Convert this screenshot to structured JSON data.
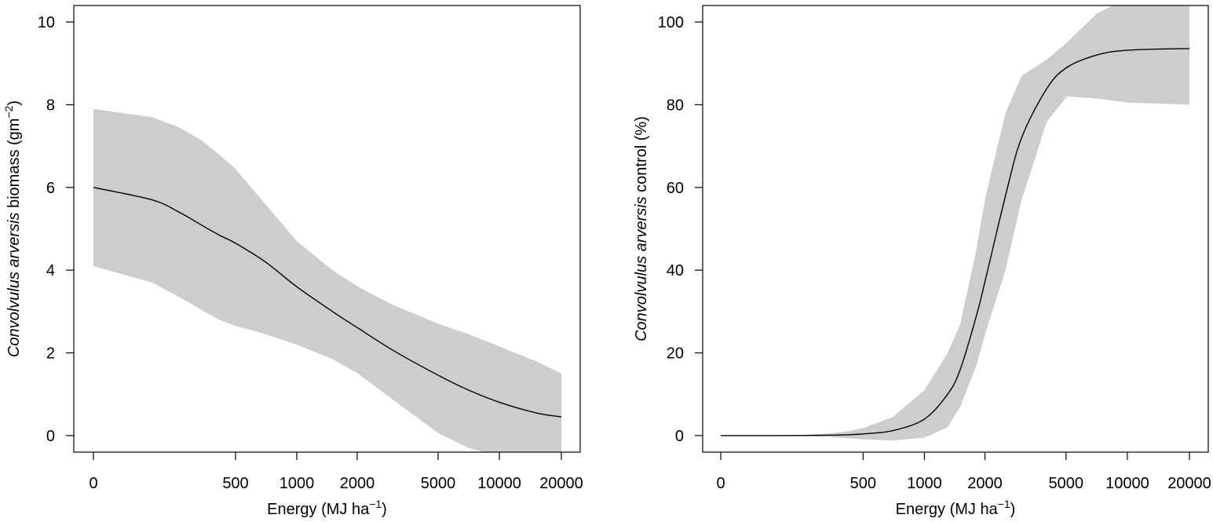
{
  "chart_data": [
    {
      "type": "line",
      "title": "",
      "xlabel": {
        "prefix": "Energy (MJ  ha",
        "sup": "−1",
        "suffix": ")"
      },
      "ylabel": {
        "italic": "Convolvulus arversis",
        "plain": "  biomass (gm",
        "sup": "−2",
        "suffix": ")"
      },
      "x_scale": "log-like, 0 plotted at origin",
      "x_ticks": [
        0,
        500,
        1000,
        2000,
        5000,
        10000,
        20000
      ],
      "y_ticks": [
        0,
        2,
        4,
        6,
        8,
        10
      ],
      "ylim": [
        -0.4,
        10.4
      ],
      "grid": false,
      "series": [
        {
          "type": "line",
          "x": [
            0,
            100,
            200,
            300,
            400,
            500,
            700,
            1000,
            1500,
            2000,
            3000,
            5000,
            7000,
            10000,
            15000,
            20000
          ],
          "values": [
            6.0,
            5.7,
            5.4,
            5.1,
            4.85,
            4.65,
            4.2,
            3.6,
            3.0,
            2.6,
            2.05,
            1.45,
            1.1,
            0.8,
            0.55,
            0.45
          ]
        }
      ],
      "band": {
        "x": [
          0,
          100,
          200,
          300,
          400,
          500,
          700,
          1000,
          1500,
          2000,
          3000,
          5000,
          7000,
          10000,
          15000,
          20000
        ],
        "upper": [
          7.9,
          7.7,
          7.45,
          7.15,
          6.8,
          6.45,
          5.6,
          4.7,
          4.0,
          3.6,
          3.15,
          2.7,
          2.45,
          2.15,
          1.8,
          1.5
        ],
        "lower": [
          4.1,
          3.7,
          3.35,
          3.05,
          2.8,
          2.65,
          2.45,
          2.2,
          1.85,
          1.5,
          0.85,
          0.05,
          -0.3,
          -0.5,
          -0.55,
          -0.55
        ]
      }
    },
    {
      "type": "line",
      "title": "",
      "xlabel": {
        "prefix": "Energy (MJ  ha",
        "sup": "−1",
        "suffix": ")"
      },
      "ylabel": {
        "italic": "Convolvulus arversis",
        "plain": " control (%)",
        "sup": "",
        "suffix": ""
      },
      "x_scale": "log-like, 0 plotted at origin",
      "x_ticks": [
        0,
        500,
        1000,
        2000,
        5000,
        10000,
        20000
      ],
      "y_ticks": [
        0,
        20,
        40,
        60,
        80,
        100
      ],
      "ylim": [
        -4,
        104
      ],
      "grid": false,
      "series": [
        {
          "type": "line",
          "x": [
            0,
            100,
            200,
            300,
            400,
            500,
            700,
            1000,
            1300,
            1500,
            1800,
            2000,
            2500,
            3000,
            4000,
            5000,
            7000,
            10000,
            20000
          ],
          "values": [
            0,
            0,
            0.05,
            0.1,
            0.2,
            0.4,
            1.2,
            4,
            10,
            16,
            29,
            38,
            58,
            72,
            84,
            89,
            92,
            93.2,
            93.6
          ]
        }
      ],
      "band": {
        "x": [
          0,
          100,
          200,
          300,
          400,
          500,
          700,
          1000,
          1300,
          1500,
          1800,
          2000,
          2500,
          3000,
          4000,
          5000,
          7000,
          10000,
          20000
        ],
        "upper": [
          0,
          0.05,
          0.2,
          0.5,
          1.0,
          1.8,
          4.5,
          11,
          20,
          27,
          45,
          58,
          78,
          87,
          91,
          95,
          102,
          106,
          106
        ],
        "lower": [
          0,
          -0.05,
          -0.15,
          -0.3,
          -0.6,
          -0.9,
          -1.2,
          -0.5,
          2,
          7,
          17,
          25,
          40,
          57,
          76,
          82,
          81.5,
          80.5,
          80
        ]
      }
    }
  ]
}
